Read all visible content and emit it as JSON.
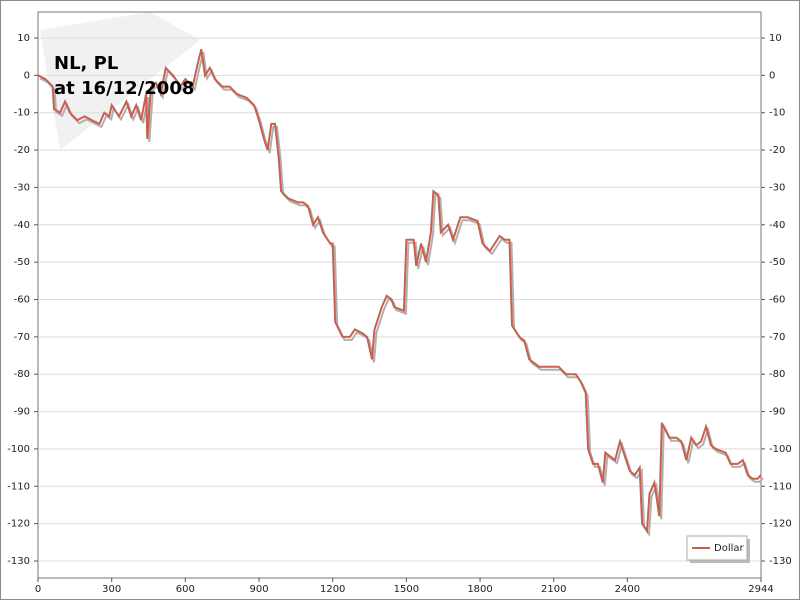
{
  "chart_data": {
    "type": "line",
    "title": "NL, PL",
    "subtitle": "at 16/12/2008",
    "x": [
      0,
      30,
      60,
      65,
      90,
      110,
      130,
      160,
      190,
      220,
      250,
      270,
      290,
      300,
      330,
      360,
      380,
      400,
      420,
      440,
      445,
      460,
      480,
      500,
      520,
      550,
      580,
      600,
      630,
      650,
      665,
      680,
      700,
      720,
      750,
      780,
      810,
      850,
      880,
      900,
      920,
      935,
      950,
      965,
      980,
      990,
      1020,
      1060,
      1080,
      1100,
      1120,
      1140,
      1160,
      1190,
      1200,
      1210,
      1240,
      1270,
      1290,
      1320,
      1340,
      1360,
      1370,
      1400,
      1420,
      1440,
      1450,
      1490,
      1500,
      1530,
      1540,
      1560,
      1580,
      1600,
      1610,
      1630,
      1640,
      1670,
      1690,
      1720,
      1750,
      1790,
      1810,
      1840,
      1860,
      1880,
      1900,
      1920,
      1930,
      1960,
      1980,
      2000,
      2040,
      2080,
      2120,
      2150,
      2190,
      2210,
      2230,
      2240,
      2260,
      2280,
      2300,
      2310,
      2330,
      2350,
      2370,
      2390,
      2410,
      2430,
      2450,
      2460,
      2480,
      2490,
      2510,
      2530,
      2540,
      2570,
      2600,
      2620,
      2640,
      2660,
      2680,
      2700,
      2720,
      2740,
      2760,
      2800,
      2820,
      2850,
      2870,
      2890,
      2910,
      2930,
      2944
    ],
    "series": [
      {
        "name": "Dollar",
        "color": "#c8604f",
        "values": [
          0,
          -1,
          -3,
          -9,
          -10,
          -7,
          -10,
          -12,
          -11,
          -12,
          -13,
          -10,
          -11,
          -8,
          -11,
          -7,
          -11,
          -8,
          -12,
          -5,
          -17,
          -3,
          -2,
          -5,
          2,
          0,
          -3,
          -1,
          -3,
          3,
          7,
          0,
          2,
          -1,
          -3,
          -3,
          -5,
          -6,
          -8,
          -12,
          -17,
          -20,
          -13,
          -13,
          -22,
          -31,
          -33,
          -34,
          -34,
          -35,
          -40,
          -38,
          -42,
          -45,
          -45,
          -66,
          -70,
          -70,
          -68,
          -69,
          -70,
          -76,
          -68,
          -62,
          -59,
          -60,
          -62,
          -63,
          -44,
          -44,
          -51,
          -45,
          -50,
          -42,
          -31,
          -32,
          -42,
          -40,
          -44,
          -38,
          -38,
          -39,
          -45,
          -47,
          -45,
          -43,
          -44,
          -44,
          -67,
          -70,
          -71,
          -76,
          -78,
          -78,
          -78,
          -80,
          -80,
          -82,
          -85,
          -100,
          -104,
          -104,
          -109,
          -101,
          -102,
          -103,
          -98,
          -102,
          -106,
          -107,
          -105,
          -120,
          -122,
          -112,
          -109,
          -118,
          -93,
          -97,
          -97,
          -98,
          -103,
          -97,
          -99,
          -98,
          -94,
          -99,
          -100,
          -101,
          -104,
          -104,
          -103,
          -107,
          -108,
          -108,
          -107
        ]
      }
    ],
    "xlim": [
      0,
      2944
    ],
    "xticks": [
      0,
      300,
      600,
      900,
      1200,
      1500,
      1800,
      2100,
      2400,
      2944
    ],
    "ylim": [
      -130,
      10
    ],
    "yticks": [
      -130,
      -120,
      -110,
      -100,
      -90,
      -80,
      -70,
      -60,
      -50,
      -40,
      -30,
      -20,
      -10,
      0,
      10
    ],
    "grid": true,
    "legend": "bottom-right"
  }
}
